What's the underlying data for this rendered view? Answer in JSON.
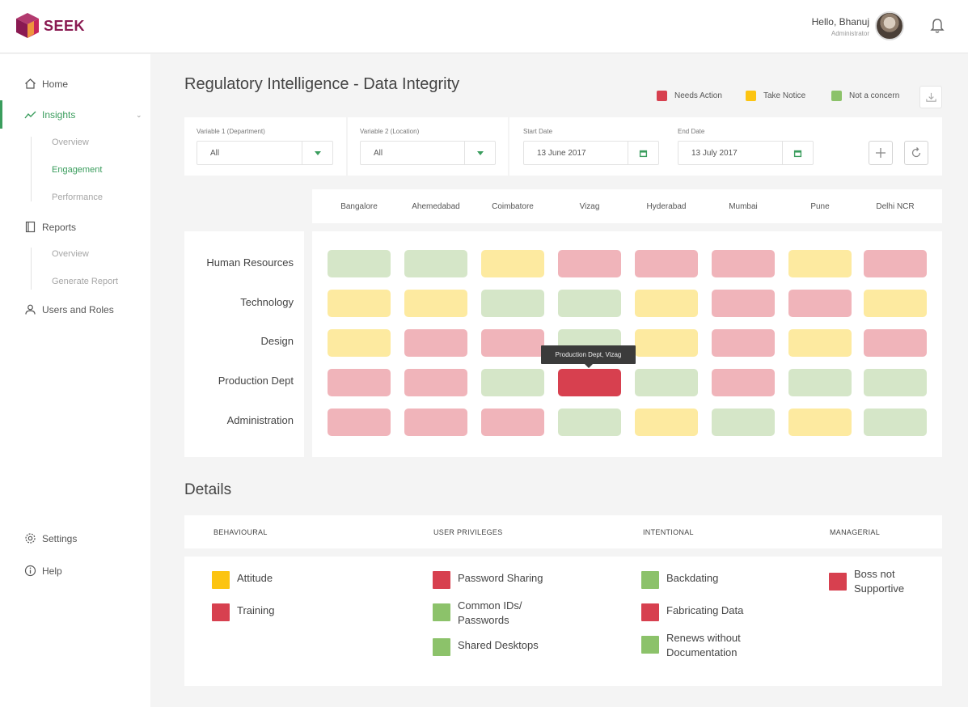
{
  "colors": {
    "red": "#d7404f",
    "yellow": "#fcc411",
    "green": "#8cc26a",
    "red_light": "#f0b4ba",
    "yellow_light": "#fdeaa0",
    "green_light": "#d5e6c8",
    "accent": "#3a9d5d"
  },
  "header": {
    "logo_text": "SEEK",
    "greeting": "Hello, Bhanuj",
    "role": "Administrator"
  },
  "sidebar": {
    "items": [
      {
        "label": "Home",
        "icon": "home-icon"
      },
      {
        "label": "Insights",
        "icon": "insights-icon"
      },
      {
        "label": "Reports",
        "icon": "reports-icon"
      },
      {
        "label": "Users and Roles",
        "icon": "user-icon"
      },
      {
        "label": "Settings",
        "icon": "gear-icon"
      },
      {
        "label": "Help",
        "icon": "info-icon"
      }
    ],
    "insights_sub": [
      "Overview",
      "Engagement",
      "Performance"
    ],
    "reports_sub": [
      "Overview",
      "Generate Report"
    ]
  },
  "page": {
    "title": "Regulatory Intelligence - Data Integrity"
  },
  "legend": [
    {
      "label": "Needs Action",
      "color": "red"
    },
    {
      "label": "Take Notice",
      "color": "yellow"
    },
    {
      "label": "Not a concern",
      "color": "green"
    }
  ],
  "filters": {
    "var1_label": "Variable 1 (Department)",
    "var1_value": "All",
    "var2_label": "Variable 2 (Location)",
    "var2_value": "All",
    "start_label": "Start Date",
    "start_value": "13 June 2017",
    "end_label": "End Date",
    "end_value": "13 July 2017"
  },
  "heatmap": {
    "cities": [
      "Bangalore",
      "Ahemedabad",
      "Coimbatore",
      "Vizag",
      "Hyderabad",
      "Mumbai",
      "Pune",
      "Delhi NCR"
    ],
    "departments": [
      "Human Resources",
      "Technology",
      "Design",
      "Production Dept",
      "Administration"
    ],
    "cells": [
      [
        "G",
        "G",
        "Y",
        "R",
        "R",
        "R",
        "Y",
        "R"
      ],
      [
        "Y",
        "Y",
        "G",
        "G",
        "Y",
        "R",
        "R",
        "Y"
      ],
      [
        "Y",
        "R",
        "R",
        "G",
        "Y",
        "R",
        "Y",
        "R"
      ],
      [
        "R",
        "R",
        "G",
        "RS",
        "G",
        "R",
        "G",
        "G"
      ],
      [
        "R",
        "R",
        "R",
        "G",
        "Y",
        "G",
        "Y",
        "G"
      ]
    ],
    "tooltip": "Production Dept, Vizag"
  },
  "details": {
    "title": "Details",
    "columns": [
      {
        "header": "BEHAVIOURAL",
        "items": [
          {
            "label": "Attitude",
            "color": "yellow"
          },
          {
            "label": "Training",
            "color": "red"
          }
        ]
      },
      {
        "header": "USER PRIVILEGES",
        "items": [
          {
            "label": "Password Sharing",
            "color": "red"
          },
          {
            "label": "Common IDs/ Passwords",
            "color": "green"
          },
          {
            "label": "Shared Desktops",
            "color": "green"
          }
        ]
      },
      {
        "header": "INTENTIONAL",
        "items": [
          {
            "label": "Backdating",
            "color": "green"
          },
          {
            "label": "Fabricating Data",
            "color": "red"
          },
          {
            "label": "Renews without Documentation",
            "color": "green"
          }
        ]
      },
      {
        "header": "MANAGERIAL",
        "items": [
          {
            "label": "Boss not Supportive",
            "color": "red"
          }
        ]
      }
    ]
  }
}
